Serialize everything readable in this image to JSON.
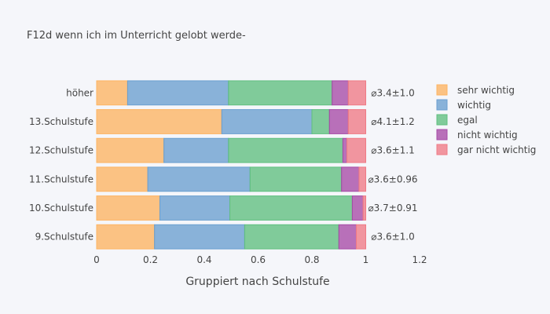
{
  "chart_data": {
    "type": "bar",
    "orientation": "horizontal",
    "barmode": "stack",
    "title": "F12d wenn ich im Unterricht gelobt werde-",
    "xlabel": "Gruppiert nach Schulstufe",
    "ylabel": "",
    "xlim": [
      0,
      1.2
    ],
    "xticks": [
      0,
      0.2,
      0.4,
      0.6,
      0.8,
      1,
      1.2
    ],
    "xtick_labels": [
      "0",
      "0.2",
      "0.4",
      "0.6",
      "0.8",
      "1",
      "1.2"
    ],
    "grid": false,
    "legend_position": "right",
    "categories": [
      "höher",
      "13.Schulstufe",
      "12.Schulstufe",
      "11.Schulstufe",
      "10.Schulstufe",
      "9.Schulstufe"
    ],
    "series": [
      {
        "name": "sehr wichtig",
        "color": "#fdb462",
        "values": [
          0.115,
          0.465,
          0.25,
          0.19,
          0.235,
          0.215
        ]
      },
      {
        "name": "wichtig",
        "color": "#6a9fd0",
        "values": [
          0.375,
          0.335,
          0.24,
          0.38,
          0.26,
          0.335
        ]
      },
      {
        "name": "egal",
        "color": "#5fbf7f",
        "values": [
          0.385,
          0.065,
          0.425,
          0.34,
          0.455,
          0.35
        ]
      },
      {
        "name": "nicht wichtig",
        "color": "#a64aa6",
        "values": [
          0.06,
          0.07,
          0.015,
          0.065,
          0.04,
          0.065
        ]
      },
      {
        "name": "gar nicht wichtig",
        "color": "#ef7a85",
        "values": [
          0.065,
          0.065,
          0.07,
          0.025,
          0.01,
          0.035
        ]
      }
    ],
    "annotations": [
      "⌀3.4±1.0",
      "⌀4.1±1.2",
      "⌀3.6±1.1",
      "⌀3.6±0.96",
      "⌀3.7±0.91",
      "⌀3.6±1.0"
    ]
  }
}
